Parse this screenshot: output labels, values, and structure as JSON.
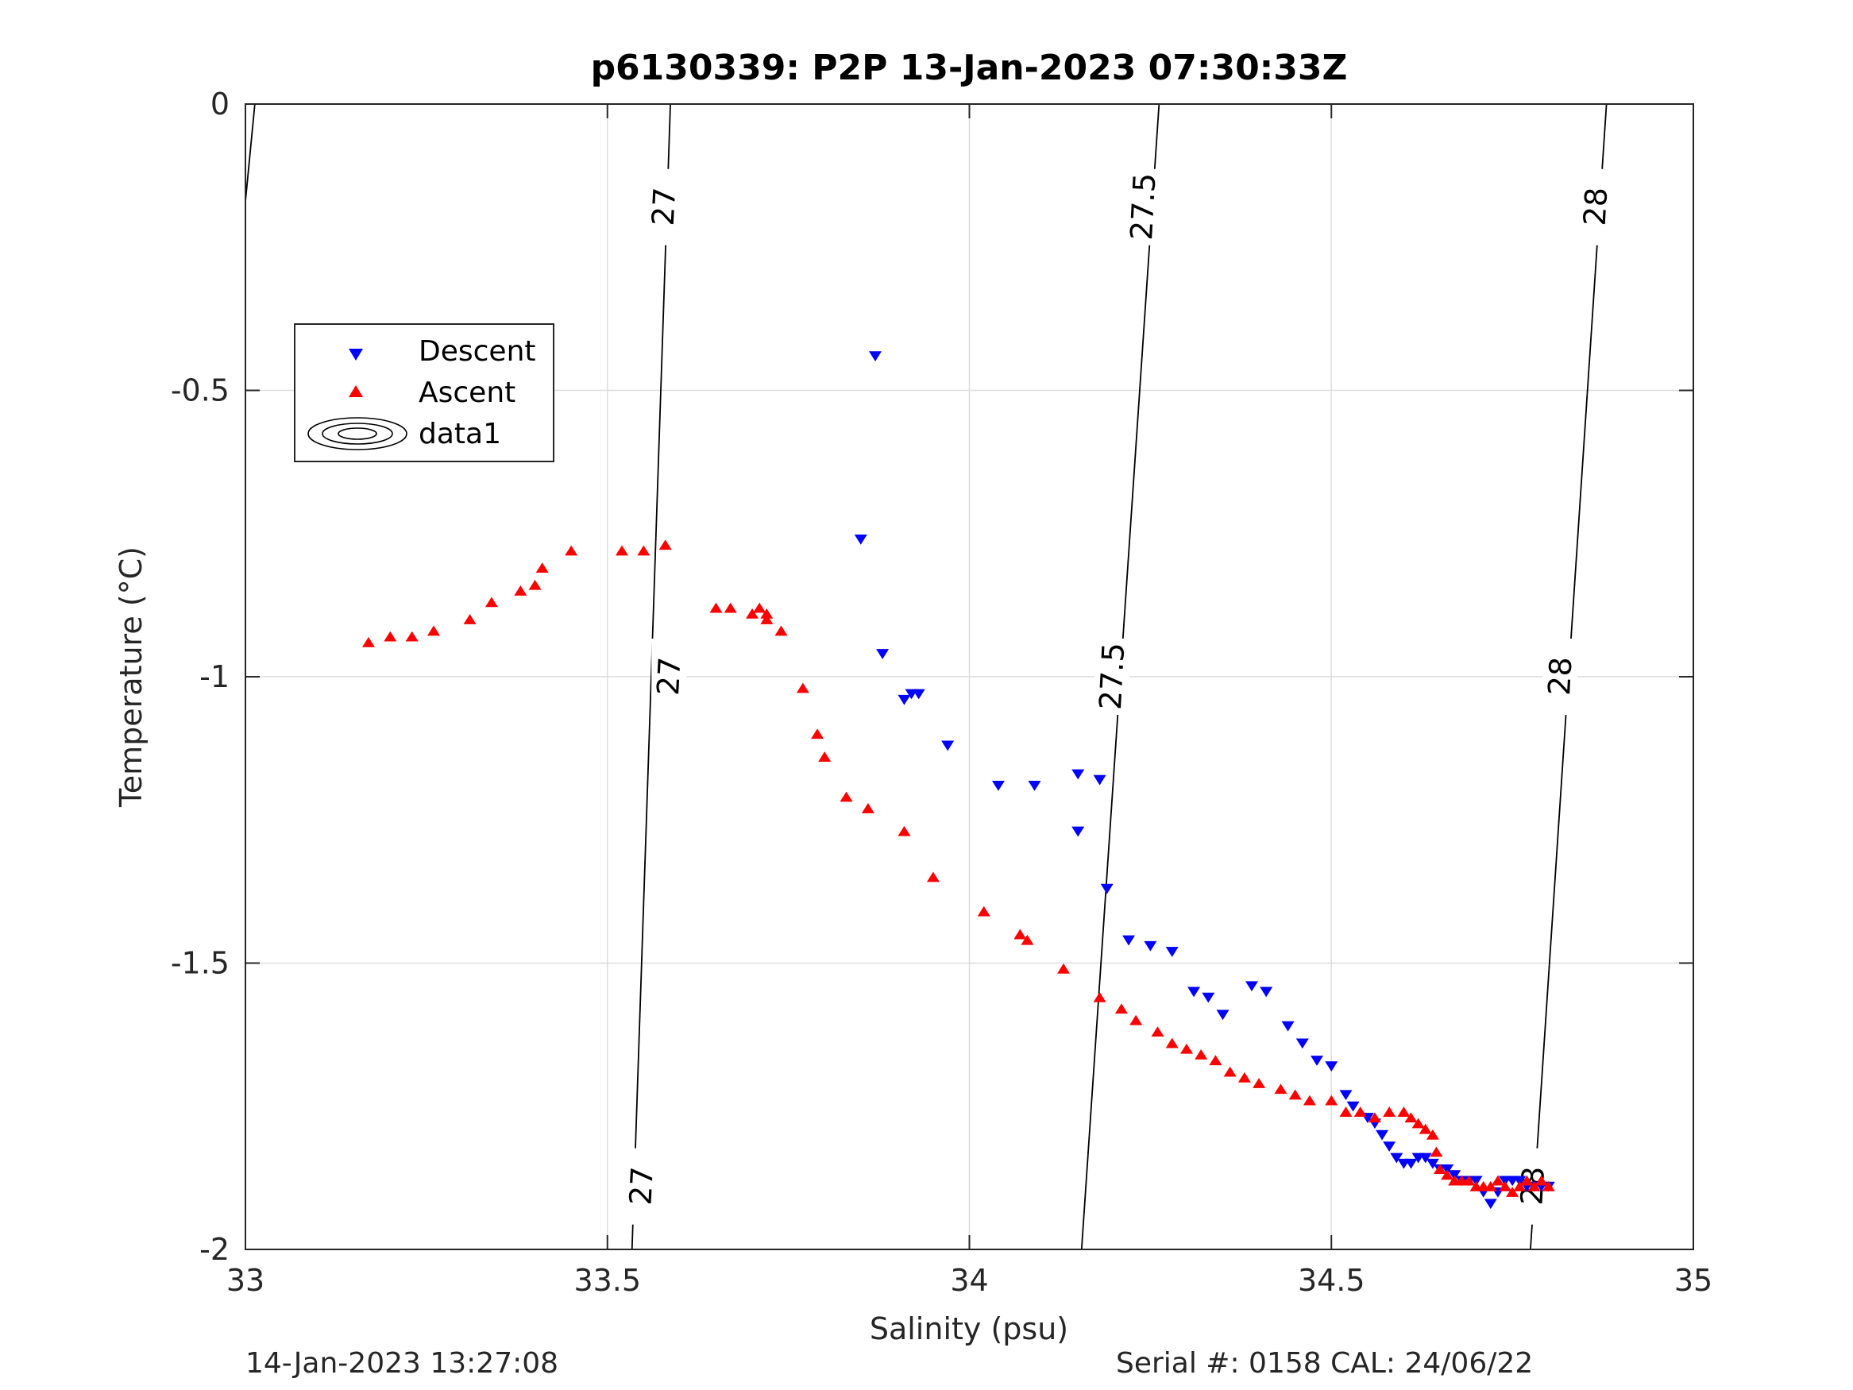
{
  "chart_data": {
    "type": "scatter",
    "title": "p6130339: P2P 13-Jan-2023 07:30:33Z",
    "xlabel": "Salinity (psu)",
    "ylabel": "Temperature (°C)",
    "xlim": [
      33,
      35
    ],
    "ylim": [
      -2,
      0
    ],
    "xticks": [
      "33",
      "33.5",
      "34",
      "34.5",
      "35"
    ],
    "yticks": [
      "0",
      "-0.5",
      "-1",
      "-1.5",
      "-2"
    ],
    "grid": true,
    "legend": {
      "placement": "upper-left",
      "entries": [
        "Descent",
        "Ascent",
        "data1"
      ]
    },
    "series": [
      {
        "name": "Descent",
        "marker": "triangle-down",
        "color": "#0000ff",
        "points": [
          [
            33.87,
            -0.44
          ],
          [
            33.85,
            -0.76
          ],
          [
            33.88,
            -0.96
          ],
          [
            33.91,
            -1.04
          ],
          [
            33.92,
            -1.03
          ],
          [
            33.93,
            -1.03
          ],
          [
            33.97,
            -1.12
          ],
          [
            34.04,
            -1.19
          ],
          [
            34.09,
            -1.19
          ],
          [
            34.15,
            -1.17
          ],
          [
            34.15,
            -1.27
          ],
          [
            34.18,
            -1.18
          ],
          [
            34.19,
            -1.37
          ],
          [
            34.22,
            -1.46
          ],
          [
            34.25,
            -1.47
          ],
          [
            34.28,
            -1.48
          ],
          [
            34.31,
            -1.55
          ],
          [
            34.33,
            -1.56
          ],
          [
            34.35,
            -1.59
          ],
          [
            34.39,
            -1.54
          ],
          [
            34.41,
            -1.55
          ],
          [
            34.44,
            -1.61
          ],
          [
            34.46,
            -1.64
          ],
          [
            34.48,
            -1.67
          ],
          [
            34.5,
            -1.68
          ],
          [
            34.52,
            -1.73
          ],
          [
            34.53,
            -1.75
          ],
          [
            34.55,
            -1.77
          ],
          [
            34.56,
            -1.78
          ],
          [
            34.57,
            -1.8
          ],
          [
            34.58,
            -1.82
          ],
          [
            34.59,
            -1.84
          ],
          [
            34.6,
            -1.85
          ],
          [
            34.61,
            -1.85
          ],
          [
            34.62,
            -1.84
          ],
          [
            34.63,
            -1.84
          ],
          [
            34.64,
            -1.85
          ],
          [
            34.65,
            -1.86
          ],
          [
            34.66,
            -1.86
          ],
          [
            34.67,
            -1.87
          ],
          [
            34.68,
            -1.88
          ],
          [
            34.69,
            -1.88
          ],
          [
            34.7,
            -1.88
          ],
          [
            34.71,
            -1.9
          ],
          [
            34.72,
            -1.92
          ],
          [
            34.73,
            -1.9
          ],
          [
            34.74,
            -1.88
          ],
          [
            34.75,
            -1.88
          ],
          [
            34.76,
            -1.88
          ],
          [
            34.77,
            -1.89
          ],
          [
            34.78,
            -1.89
          ],
          [
            34.79,
            -1.89
          ],
          [
            34.8,
            -1.89
          ]
        ]
      },
      {
        "name": "Ascent",
        "marker": "triangle-up",
        "color": "#ff0000",
        "points": [
          [
            33.17,
            -0.94
          ],
          [
            33.2,
            -0.93
          ],
          [
            33.23,
            -0.93
          ],
          [
            33.26,
            -0.92
          ],
          [
            33.31,
            -0.9
          ],
          [
            33.34,
            -0.87
          ],
          [
            33.38,
            -0.85
          ],
          [
            33.4,
            -0.84
          ],
          [
            33.41,
            -0.81
          ],
          [
            33.45,
            -0.78
          ],
          [
            33.52,
            -0.78
          ],
          [
            33.55,
            -0.78
          ],
          [
            33.58,
            -0.77
          ],
          [
            33.65,
            -0.88
          ],
          [
            33.67,
            -0.88
          ],
          [
            33.7,
            -0.89
          ],
          [
            33.71,
            -0.88
          ],
          [
            33.72,
            -0.89
          ],
          [
            33.72,
            -0.9
          ],
          [
            33.74,
            -0.92
          ],
          [
            33.77,
            -1.02
          ],
          [
            33.79,
            -1.1
          ],
          [
            33.8,
            -1.14
          ],
          [
            33.83,
            -1.21
          ],
          [
            33.86,
            -1.23
          ],
          [
            33.91,
            -1.27
          ],
          [
            33.95,
            -1.35
          ],
          [
            34.02,
            -1.41
          ],
          [
            34.07,
            -1.45
          ],
          [
            34.08,
            -1.46
          ],
          [
            34.13,
            -1.51
          ],
          [
            34.18,
            -1.56
          ],
          [
            34.21,
            -1.58
          ],
          [
            34.23,
            -1.6
          ],
          [
            34.26,
            -1.62
          ],
          [
            34.28,
            -1.64
          ],
          [
            34.3,
            -1.65
          ],
          [
            34.32,
            -1.66
          ],
          [
            34.34,
            -1.67
          ],
          [
            34.36,
            -1.69
          ],
          [
            34.38,
            -1.7
          ],
          [
            34.4,
            -1.71
          ],
          [
            34.43,
            -1.72
          ],
          [
            34.45,
            -1.73
          ],
          [
            34.47,
            -1.74
          ],
          [
            34.5,
            -1.74
          ],
          [
            34.52,
            -1.76
          ],
          [
            34.54,
            -1.76
          ],
          [
            34.56,
            -1.77
          ],
          [
            34.58,
            -1.76
          ],
          [
            34.6,
            -1.76
          ],
          [
            34.61,
            -1.77
          ],
          [
            34.62,
            -1.78
          ],
          [
            34.63,
            -1.79
          ],
          [
            34.64,
            -1.8
          ],
          [
            34.645,
            -1.83
          ],
          [
            34.65,
            -1.86
          ],
          [
            34.66,
            -1.87
          ],
          [
            34.67,
            -1.88
          ],
          [
            34.68,
            -1.88
          ],
          [
            34.69,
            -1.88
          ],
          [
            34.7,
            -1.89
          ],
          [
            34.71,
            -1.89
          ],
          [
            34.72,
            -1.89
          ],
          [
            34.73,
            -1.88
          ],
          [
            34.74,
            -1.89
          ],
          [
            34.75,
            -1.9
          ],
          [
            34.76,
            -1.89
          ],
          [
            34.77,
            -1.88
          ],
          [
            34.78,
            -1.89
          ],
          [
            34.79,
            -1.88
          ],
          [
            34.8,
            -1.89
          ]
        ]
      }
    ],
    "isopycnals": [
      {
        "label": "27",
        "lines": [
          [
            33.534,
            -2
          ],
          [
            33.587,
            0
          ]
        ]
      },
      {
        "label": "27.5",
        "lines": [
          [
            34.155,
            -2
          ],
          [
            34.262,
            0
          ]
        ]
      },
      {
        "label": "28",
        "lines": [
          [
            34.775,
            -2
          ],
          [
            34.88,
            0
          ]
        ]
      },
      {
        "label": "",
        "lines": [
          [
            33.0,
            -0.17
          ],
          [
            33.013,
            0
          ]
        ]
      }
    ],
    "isopycnal_labels": [
      {
        "text": "27",
        "at": [
          33.578,
          -0.18
        ]
      },
      {
        "text": "27",
        "at": [
          33.585,
          -1.0
        ]
      },
      {
        "text": "27",
        "at": [
          33.547,
          -1.89
        ]
      },
      {
        "text": "27.5",
        "at": [
          34.24,
          -0.18
        ]
      },
      {
        "text": "27.5",
        "at": [
          34.197,
          -1.0
        ]
      },
      {
        "text": "28",
        "at": [
          34.865,
          -0.18
        ]
      },
      {
        "text": "28",
        "at": [
          34.816,
          -1.0
        ]
      },
      {
        "text": "28",
        "at": [
          34.778,
          -1.89
        ]
      }
    ]
  },
  "footer": {
    "left": "14-Jan-2023 13:27:08",
    "right": "Serial #: 0158  CAL: 24/06/22"
  }
}
